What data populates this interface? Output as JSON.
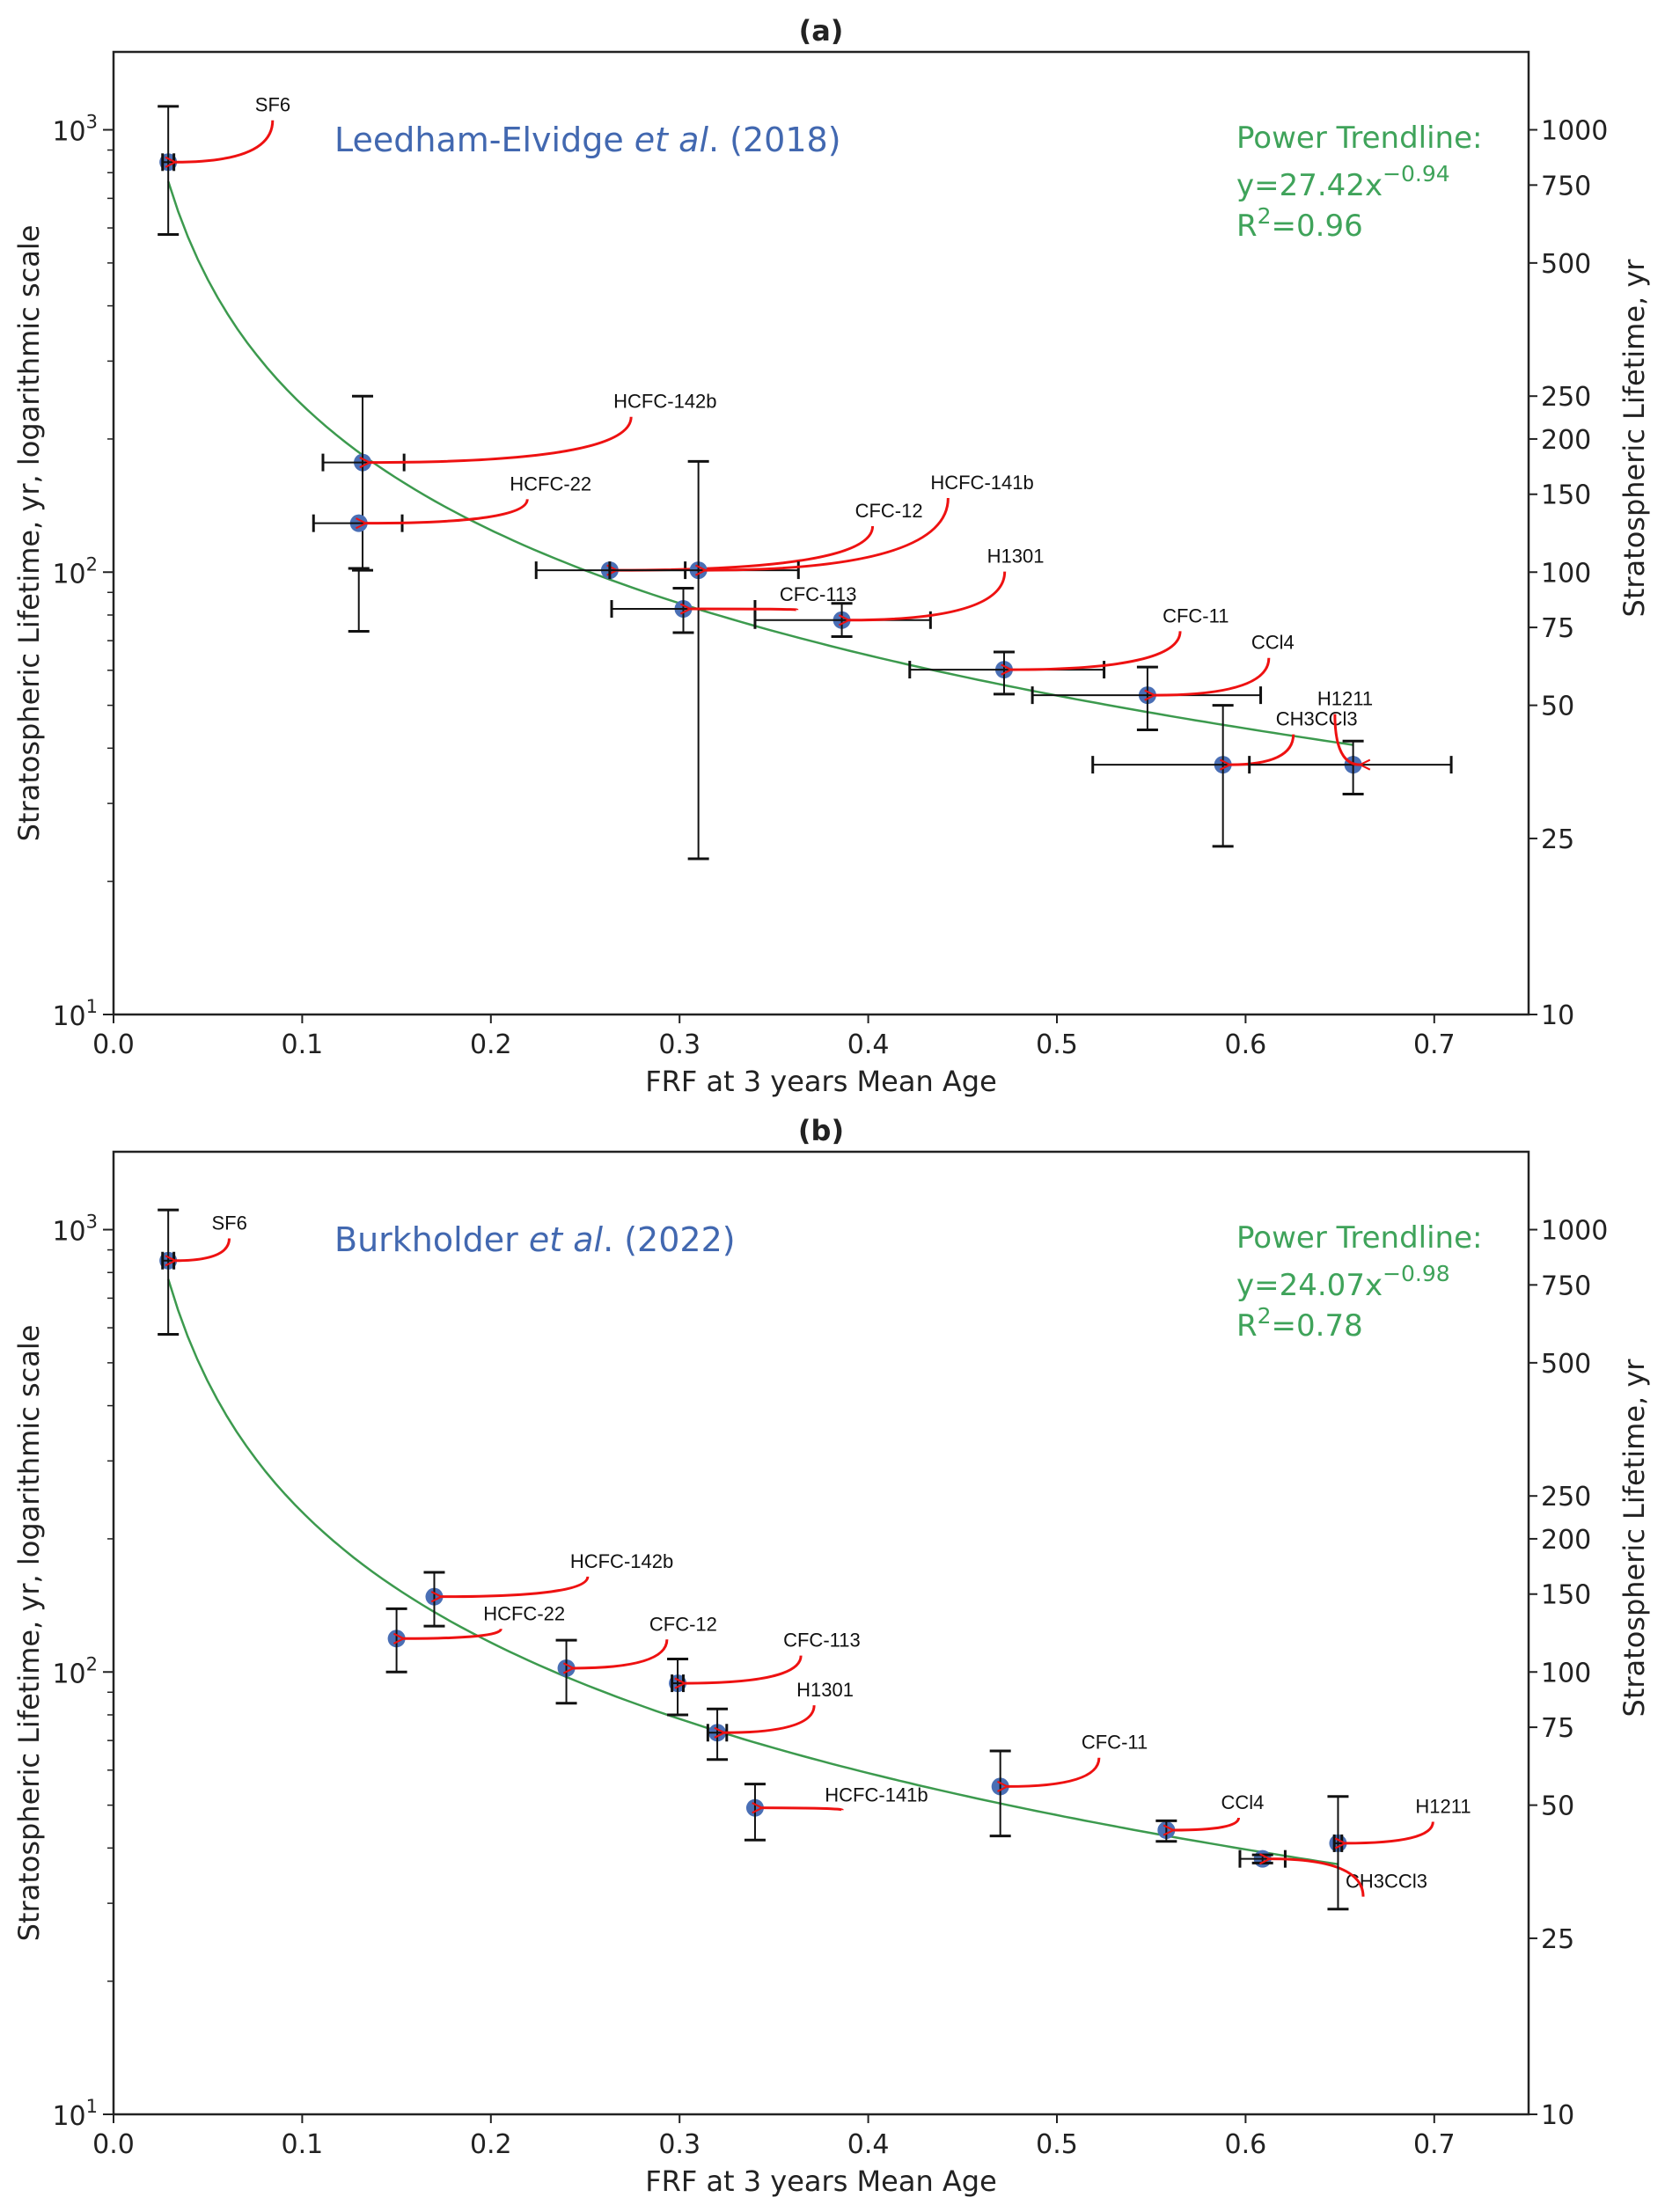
{
  "colors": {
    "marker": "#4a6fb5",
    "trendline": "#3c9a4e",
    "arrow": "#ee1111",
    "errorbar": "#111111",
    "source_text": "#4268b0",
    "trend_text": "#3fa35a",
    "axis": "#222222"
  },
  "chart_data": [
    {
      "type": "scatter",
      "panel": "(a)",
      "title": "(a)",
      "source": {
        "prefix": "Leedham-Elvidge ",
        "italic": "et al",
        "suffix": ". (2018)"
      },
      "trendline": {
        "label": "Power Trendline:",
        "equation_base": "y=27.42x",
        "equation_exponent": "−0.94",
        "r2_base": "R",
        "r2_sup": "2",
        "r2_value": "=0.96",
        "a": 27.42,
        "b": -0.94,
        "x_range": [
          0.029,
          0.657
        ]
      },
      "xlabel": "FRF at 3 years Mean Age",
      "ylabel": "Stratospheric Lifetime, yr, logarithmic scale",
      "ylabel_right": "Stratospheric Lifetime, yr",
      "xlim": [
        0.0,
        0.75
      ],
      "ylim": [
        10,
        1500
      ],
      "yscale": "log",
      "xticks": [
        "0.0",
        "0.1",
        "0.2",
        "0.3",
        "0.4",
        "0.5",
        "0.6",
        "0.7"
      ],
      "yticks_left": [
        {
          "value": 10,
          "base": "10",
          "exp": "1"
        },
        {
          "value": 100,
          "base": "10",
          "exp": "2"
        },
        {
          "value": 1000,
          "base": "10",
          "exp": "3"
        }
      ],
      "yticks_right": [
        10,
        25,
        50,
        75,
        100,
        150,
        200,
        250,
        500,
        750,
        1000
      ],
      "points": [
        {
          "name": "SF6",
          "x": 0.029,
          "y": 845,
          "xerr": [
            0.026,
            0.032
          ],
          "yerr": [
            580,
            1130
          ],
          "label_at": [
            0.075,
            1100
          ],
          "label_anchor": "start"
        },
        {
          "name": "HCFC-142b",
          "x": 0.132,
          "y": 177,
          "xerr": [
            0.111,
            0.154
          ],
          "yerr": [
            101,
            250
          ],
          "label_at": [
            0.265,
            235
          ],
          "label_anchor": "start"
        },
        {
          "name": "HCFC-22",
          "x": 0.13,
          "y": 129,
          "xerr": [
            0.106,
            0.153
          ],
          "yerr": [
            73.5,
            102
          ],
          "label_at": [
            0.21,
            153
          ],
          "label_anchor": "start"
        },
        {
          "name": "CFC-12",
          "x": 0.263,
          "y": 101,
          "xerr": [
            0.224,
            0.303
          ],
          "yerr": [
            101,
            101
          ],
          "label_at": [
            0.393,
            133
          ],
          "label_anchor": "start"
        },
        {
          "name": "HCFC-141b",
          "x": 0.31,
          "y": 101,
          "xerr": [
            0.263,
            0.363
          ],
          "yerr": [
            22.5,
            178
          ],
          "label_at": [
            0.433,
            154
          ],
          "label_anchor": "start"
        },
        {
          "name": "CFC-113",
          "x": 0.302,
          "y": 82.6,
          "xerr": [
            0.264,
            0.34
          ],
          "yerr": [
            73,
            92
          ],
          "label_at": [
            0.353,
            86
          ],
          "label_anchor": "start"
        },
        {
          "name": "H1301",
          "x": 0.386,
          "y": 77.9,
          "xerr": [
            0.34,
            0.433
          ],
          "yerr": [
            71.5,
            85
          ],
          "label_at": [
            0.463,
            105
          ],
          "label_anchor": "start"
        },
        {
          "name": "CFC-11",
          "x": 0.472,
          "y": 60.2,
          "xerr": [
            0.422,
            0.525
          ],
          "yerr": [
            53,
            66
          ],
          "label_at": [
            0.556,
            77
          ],
          "label_anchor": "start"
        },
        {
          "name": "CCl4",
          "x": 0.548,
          "y": 52.7,
          "xerr": [
            0.487,
            0.608
          ],
          "yerr": [
            44,
            61
          ],
          "label_at": [
            0.603,
            67
          ],
          "label_anchor": "start"
        },
        {
          "name": "CH3CCl3",
          "x": 0.588,
          "y": 36.7,
          "xerr": [
            0.519,
            0.657
          ],
          "yerr": [
            24,
            50
          ],
          "label_at": [
            0.616,
            45
          ],
          "label_anchor": "start"
        },
        {
          "name": "H1211",
          "x": 0.657,
          "y": 36.7,
          "xerr": [
            0.602,
            0.709
          ],
          "yerr": [
            31.5,
            41.5
          ],
          "label_at": [
            0.638,
            50
          ],
          "label_anchor": "start"
        }
      ]
    },
    {
      "type": "scatter",
      "panel": "(b)",
      "title": "(b)",
      "source": {
        "prefix": "Burkholder ",
        "italic": "et al",
        "suffix": ". (2022)"
      },
      "trendline": {
        "label": "Power Trendline:",
        "equation_base": "y=24.07x",
        "equation_exponent": "−0.98",
        "r2_base": "R",
        "r2_sup": "2",
        "r2_value": "=0.78",
        "a": 24.07,
        "b": -0.98,
        "x_range": [
          0.029,
          0.649
        ]
      },
      "xlabel": "FRF at 3 years Mean Age",
      "ylabel": "Stratospheric Lifetime, yr, logarithmic scale",
      "ylabel_right": "Stratospheric Lifetime, yr",
      "xlim": [
        0.0,
        0.75
      ],
      "ylim": [
        10,
        1500
      ],
      "yscale": "log",
      "xticks": [
        "0.0",
        "0.1",
        "0.2",
        "0.3",
        "0.4",
        "0.5",
        "0.6",
        "0.7"
      ],
      "yticks_left": [
        {
          "value": 10,
          "base": "10",
          "exp": "1"
        },
        {
          "value": 100,
          "base": "10",
          "exp": "2"
        },
        {
          "value": 1000,
          "base": "10",
          "exp": "3"
        }
      ],
      "yticks_right": [
        10,
        25,
        50,
        75,
        100,
        150,
        200,
        250,
        500,
        750,
        1000
      ],
      "points": [
        {
          "name": "SF6",
          "x": 0.029,
          "y": 851,
          "xerr": [
            0.026,
            0.032
          ],
          "yerr": [
            580,
            1108
          ],
          "label_at": [
            0.052,
            1000
          ],
          "label_anchor": "start"
        },
        {
          "name": "HCFC-142b",
          "x": 0.17,
          "y": 148,
          "xerr": [
            0.17,
            0.17
          ],
          "yerr": [
            127,
            168
          ],
          "label_at": [
            0.242,
            172
          ],
          "label_anchor": "start"
        },
        {
          "name": "HCFC-22",
          "x": 0.15,
          "y": 119,
          "xerr": [
            0.15,
            0.15
          ],
          "yerr": [
            100,
            139
          ],
          "label_at": [
            0.196,
            131
          ],
          "label_anchor": "start"
        },
        {
          "name": "CFC-12",
          "x": 0.24,
          "y": 102,
          "xerr": [
            0.24,
            0.24
          ],
          "yerr": [
            85,
            118
          ],
          "label_at": [
            0.284,
            124
          ],
          "label_anchor": "start"
        },
        {
          "name": "CFC-113",
          "x": 0.299,
          "y": 94.3,
          "xerr": [
            0.296,
            0.302
          ],
          "yerr": [
            80,
            107
          ],
          "label_at": [
            0.355,
            114
          ],
          "label_anchor": "start"
        },
        {
          "name": "H1301",
          "x": 0.32,
          "y": 72.9,
          "xerr": [
            0.315,
            0.325
          ],
          "yerr": [
            63.4,
            82.5
          ],
          "label_at": [
            0.362,
            88
          ],
          "label_anchor": "start"
        },
        {
          "name": "HCFC-141b",
          "x": 0.34,
          "y": 49.3,
          "xerr": [
            0.34,
            0.34
          ],
          "yerr": [
            41.7,
            55.8
          ],
          "label_at": [
            0.377,
            51
          ],
          "label_anchor": "start"
        },
        {
          "name": "CFC-11",
          "x": 0.47,
          "y": 55.1,
          "xerr": [
            0.47,
            0.47
          ],
          "yerr": [
            42.6,
            66.3
          ],
          "label_at": [
            0.513,
            67
          ],
          "label_anchor": "start"
        },
        {
          "name": "CCl4",
          "x": 0.558,
          "y": 43.9,
          "xerr": [
            0.558,
            0.558
          ],
          "yerr": [
            41.4,
            46.1
          ],
          "label_at": [
            0.587,
            49
          ],
          "label_anchor": "start"
        },
        {
          "name": "CH3CCl3",
          "x": 0.609,
          "y": 37.8,
          "xerr": [
            0.597,
            0.621
          ],
          "yerr": [
            37,
            38.6
          ],
          "label_at": [
            0.653,
            32.5
          ],
          "label_anchor": "start"
        },
        {
          "name": "H1211",
          "x": 0.649,
          "y": 41,
          "xerr": [
            0.647,
            0.651
          ],
          "yerr": [
            29.1,
            52.3
          ],
          "label_at": [
            0.69,
            48
          ],
          "label_anchor": "start"
        }
      ]
    }
  ]
}
